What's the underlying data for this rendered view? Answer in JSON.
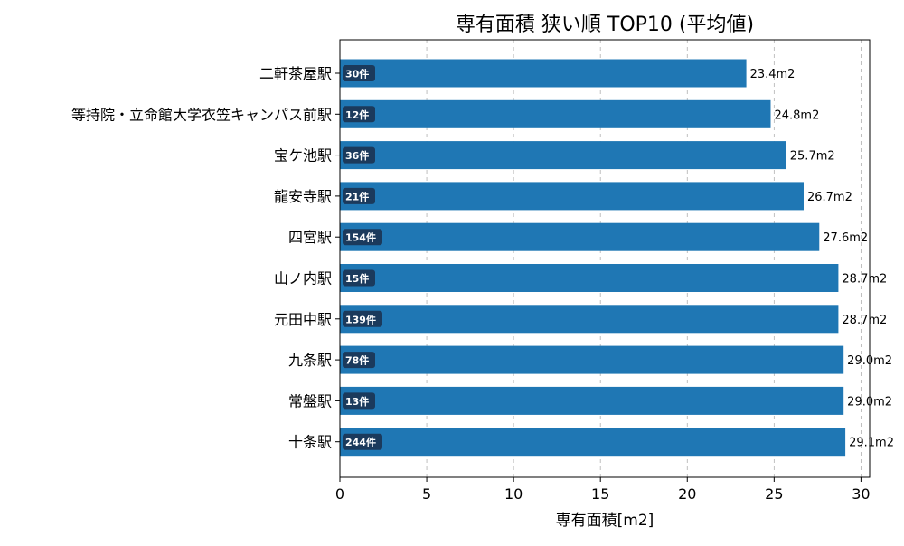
{
  "chart_data": {
    "type": "bar",
    "orientation": "horizontal",
    "title": "専有面積 狭い順 TOP10 (平均値)",
    "xlabel": "専有面積[m2]",
    "ylabel": "",
    "xlim": [
      0,
      30.5
    ],
    "xticks": [
      "0",
      "5",
      "10",
      "15",
      "20",
      "25",
      "30"
    ],
    "grid": "x-dashed",
    "bar_color": "#1f77b4",
    "count_badge_color": "#1b3a5c",
    "categories": [
      "二軒茶屋駅",
      "等持院・立命館大学衣笠キャンパス前駅",
      "宝ケ池駅",
      "龍安寺駅",
      "四宮駅",
      "山ノ内駅",
      "元田中駅",
      "九条駅",
      "常盤駅",
      "十条駅"
    ],
    "values": [
      23.4,
      24.8,
      25.7,
      26.7,
      27.6,
      28.7,
      28.7,
      29.0,
      29.0,
      29.1
    ],
    "value_labels": [
      "23.4m2",
      "24.8m2",
      "25.7m2",
      "26.7m2",
      "27.6m2",
      "28.7m2",
      "28.7m2",
      "29.0m2",
      "29.0m2",
      "29.1m2"
    ],
    "counts": [
      "30件",
      "12件",
      "36件",
      "21件",
      "154件",
      "15件",
      "139件",
      "78件",
      "13件",
      "244件"
    ]
  }
}
